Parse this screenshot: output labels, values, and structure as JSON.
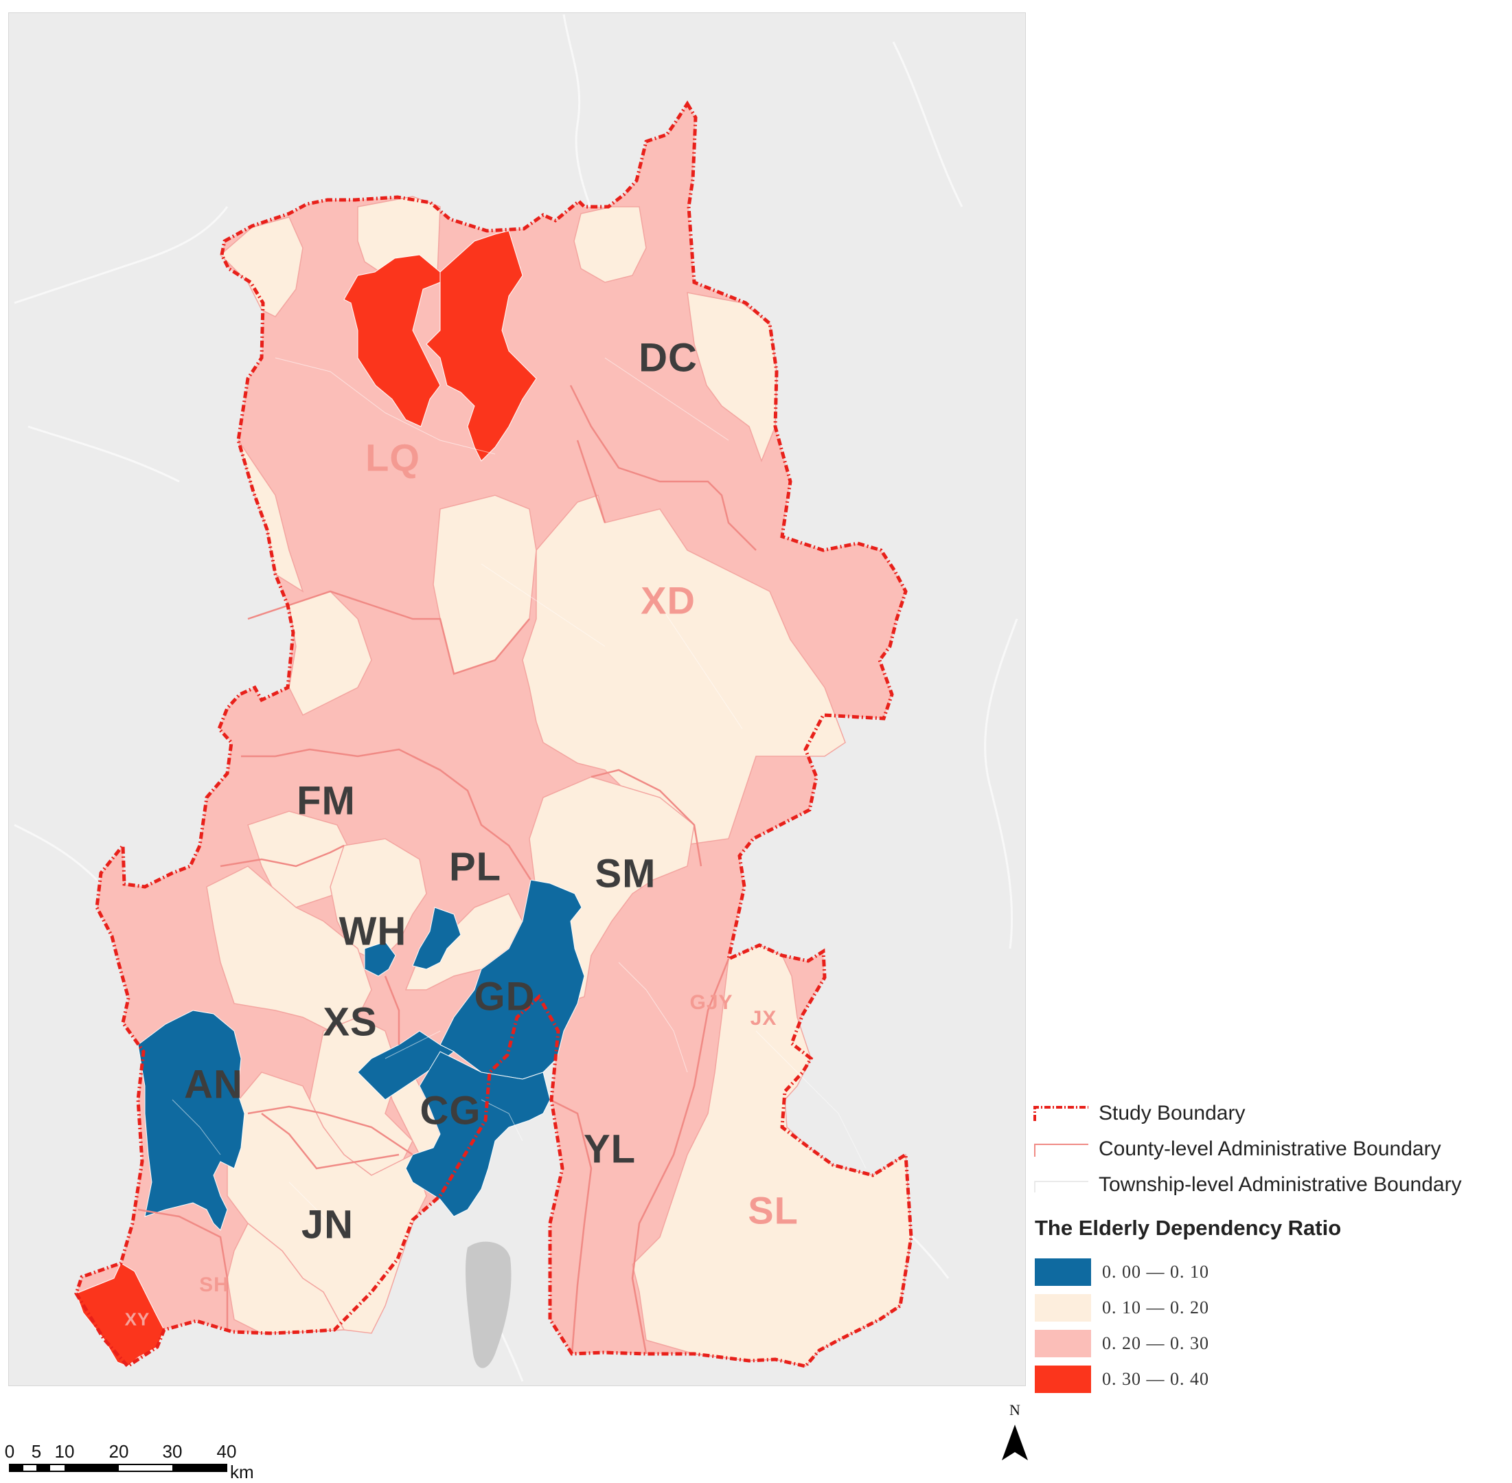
{
  "map": {
    "colors": {
      "background": "#ececec",
      "boundary": "#e8201a",
      "county_line": "#f08a85",
      "class_1": "#0f6aa0",
      "class_2": "#fdeedd",
      "class_3": "#fbbeb8",
      "class_4": "#fb351c"
    },
    "county_labels": [
      {
        "code": "DC",
        "style": "dark"
      },
      {
        "code": "LQ",
        "style": "pink"
      },
      {
        "code": "XD",
        "style": "pink"
      },
      {
        "code": "FM",
        "style": "dark"
      },
      {
        "code": "PL",
        "style": "dark"
      },
      {
        "code": "SM",
        "style": "dark"
      },
      {
        "code": "WH",
        "style": "dark"
      },
      {
        "code": "GD",
        "style": "dark"
      },
      {
        "code": "XS",
        "style": "dark"
      },
      {
        "code": "AN",
        "style": "dark"
      },
      {
        "code": "CG",
        "style": "dark"
      },
      {
        "code": "GJY",
        "style": "pink-small"
      },
      {
        "code": "JX",
        "style": "pink-small"
      },
      {
        "code": "YL",
        "style": "dark"
      },
      {
        "code": "SL",
        "style": "pink"
      },
      {
        "code": "JN",
        "style": "dark"
      },
      {
        "code": "SH",
        "style": "pink-small"
      },
      {
        "code": "XY",
        "style": "xy"
      }
    ]
  },
  "legend": {
    "study_boundary": "Study Boundary",
    "county_boundary": "County-level Administrative Boundary",
    "township_boundary": "Township-level Administrative Boundary",
    "title": "The Elderly Dependency Ratio",
    "classes": [
      {
        "range": "0. 00 — 0. 10",
        "color": "#0f6aa0"
      },
      {
        "range": "0. 10 — 0. 20",
        "color": "#fdeedd"
      },
      {
        "range": "0. 20 — 0. 30",
        "color": "#fbbeb8"
      },
      {
        "range": "0. 30 — 0. 40",
        "color": "#fb351c"
      }
    ]
  },
  "scalebar": {
    "ticks": [
      "0",
      "5",
      "10",
      "20",
      "30",
      "40"
    ],
    "unit": "km"
  },
  "north_arrow": {
    "letter": "N"
  }
}
